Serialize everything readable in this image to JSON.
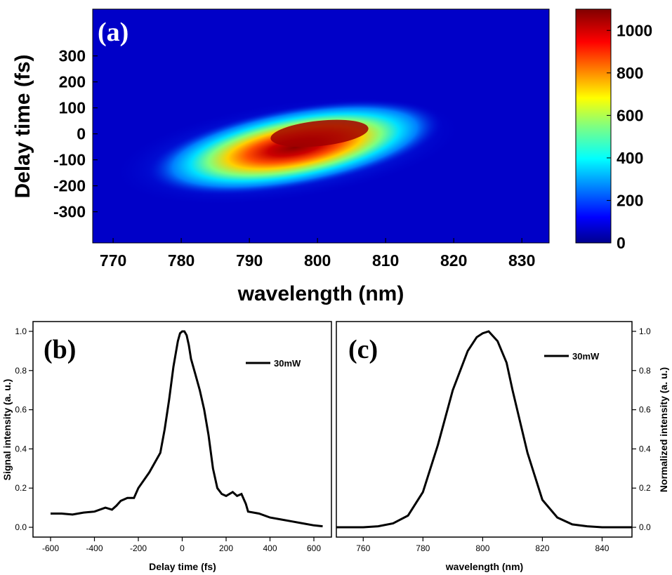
{
  "chart_data": [
    {
      "type": "heatmap",
      "panel_label": "(a)",
      "xlabel": "wavelength (nm)",
      "ylabel": "Delay time (fs)",
      "xlim": [
        767,
        834
      ],
      "ylim": [
        -420,
        480
      ],
      "x_ticks": [
        770,
        780,
        790,
        800,
        810,
        820,
        830
      ],
      "y_ticks": [
        300,
        200,
        100,
        0,
        -100,
        -200,
        -300
      ],
      "colorbar": {
        "min": 0,
        "max": 1100,
        "ticks": [
          1000,
          800,
          600,
          400,
          200,
          0
        ]
      },
      "peak": {
        "wavelength": 802,
        "delay": 10,
        "value": 1100
      }
    },
    {
      "type": "line",
      "panel_label": "(b)",
      "xlabel": "Delay time (fs)",
      "ylabel": "Signal intensity (a. u.)",
      "xlim": [
        -680,
        680
      ],
      "ylim": [
        -0.05,
        1.05
      ],
      "x_ticks": [
        -600,
        -400,
        -200,
        0,
        200,
        400,
        600
      ],
      "y_ticks": [
        0.0,
        0.2,
        0.4,
        0.6,
        0.8,
        1.0
      ],
      "series": [
        {
          "name": "30mW",
          "x": [
            -600,
            -550,
            -500,
            -450,
            -400,
            -350,
            -320,
            -300,
            -280,
            -250,
            -220,
            -200,
            -150,
            -100,
            -80,
            -60,
            -40,
            -20,
            -10,
            0,
            10,
            20,
            30,
            40,
            60,
            80,
            100,
            120,
            140,
            160,
            180,
            200,
            230,
            250,
            270,
            290,
            300,
            350,
            400,
            450,
            500,
            550,
            600,
            640
          ],
          "y": [
            0.07,
            0.07,
            0.065,
            0.075,
            0.08,
            0.1,
            0.09,
            0.11,
            0.135,
            0.15,
            0.15,
            0.2,
            0.28,
            0.38,
            0.5,
            0.65,
            0.82,
            0.95,
            0.99,
            1.0,
            1.0,
            0.98,
            0.93,
            0.86,
            0.78,
            0.7,
            0.6,
            0.47,
            0.3,
            0.2,
            0.17,
            0.16,
            0.18,
            0.16,
            0.17,
            0.12,
            0.08,
            0.07,
            0.05,
            0.04,
            0.03,
            0.02,
            0.01,
            0.005
          ]
        }
      ]
    },
    {
      "type": "line",
      "panel_label": "(c)",
      "xlabel": "wavelength (nm)",
      "ylabel": "Normalized intensity (a. u.)",
      "xlim": [
        751,
        850
      ],
      "ylim": [
        -0.05,
        1.05
      ],
      "x_ticks": [
        760,
        780,
        800,
        820,
        840
      ],
      "y_ticks": [
        0.0,
        0.2,
        0.4,
        0.6,
        0.8,
        1.0
      ],
      "series": [
        {
          "name": "30mW",
          "x": [
            751,
            760,
            765,
            770,
            775,
            780,
            785,
            790,
            795,
            798,
            800,
            802,
            805,
            808,
            810,
            815,
            820,
            825,
            830,
            835,
            840,
            845,
            850
          ],
          "y": [
            0.0,
            0.0,
            0.005,
            0.02,
            0.06,
            0.18,
            0.42,
            0.7,
            0.9,
            0.97,
            0.99,
            1.0,
            0.95,
            0.84,
            0.7,
            0.38,
            0.14,
            0.05,
            0.015,
            0.005,
            0.0,
            0.0,
            0.0
          ]
        }
      ]
    }
  ]
}
